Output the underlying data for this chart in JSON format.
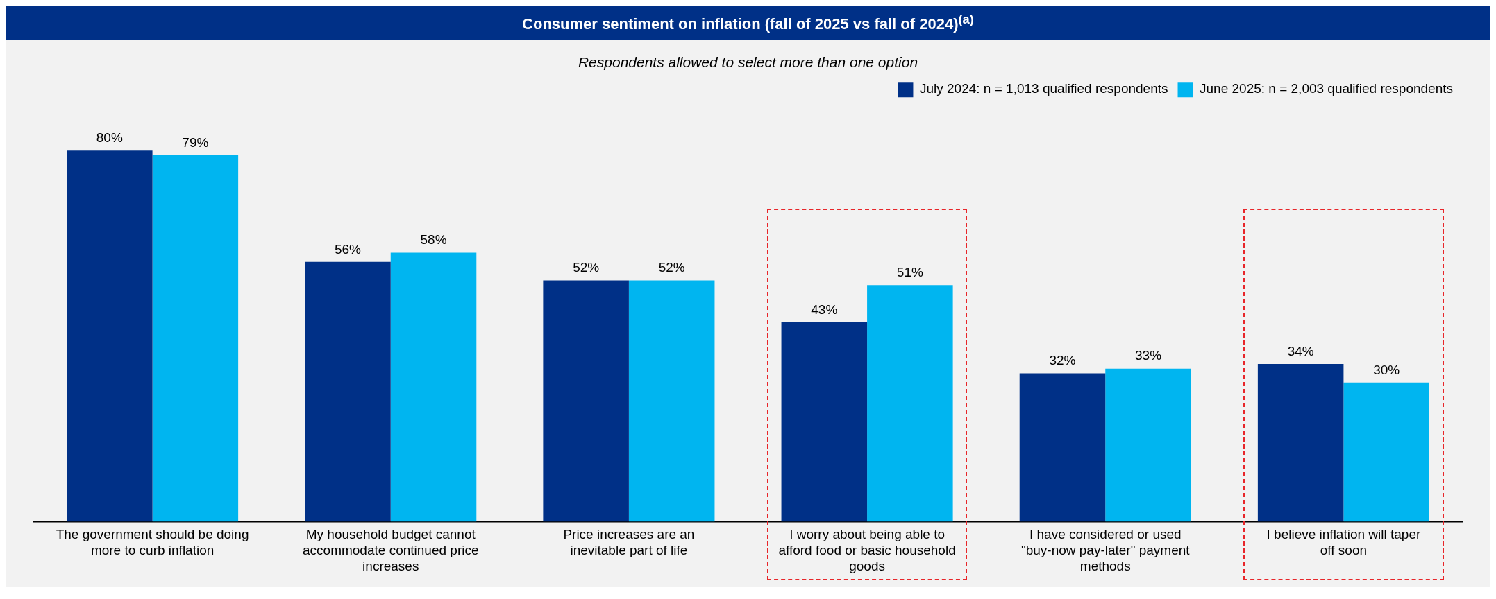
{
  "chart_data": {
    "type": "bar",
    "title": "Consumer sentiment on inflation (fall of 2025 vs fall of 2024)$^{(a)}$",
    "subtitle": "Respondents allowed to select more than one option",
    "categories": [
      "The government should be doing more to curb inflation",
      "My household budget cannot accommodate continued price increases",
      "Price increases are an inevitable part of life",
      "I worry about being able to afford food or basic household goods",
      "I have considered or used \"buy-now pay-later\" payment methods",
      "I believe inflation will taper off soon"
    ],
    "series": [
      {
        "name": "July 2024: n = 1,013 qualified respondents",
        "color": "#003087",
        "values": [
          80,
          56,
          52,
          43,
          32,
          34
        ],
        "value_labels": [
          "80%",
          "56%",
          "52%",
          "43%",
          "32%",
          "34%"
        ]
      },
      {
        "name": "June 2025: n = 2,003 qualified respondents",
        "color": "#00b5f0",
        "values": [
          79,
          58,
          52,
          51,
          33,
          30
        ],
        "value_labels": [
          "79%",
          "58%",
          "52%",
          "51%",
          "33%",
          "30%"
        ]
      }
    ],
    "legend": "top right",
    "grid": false
  }
}
